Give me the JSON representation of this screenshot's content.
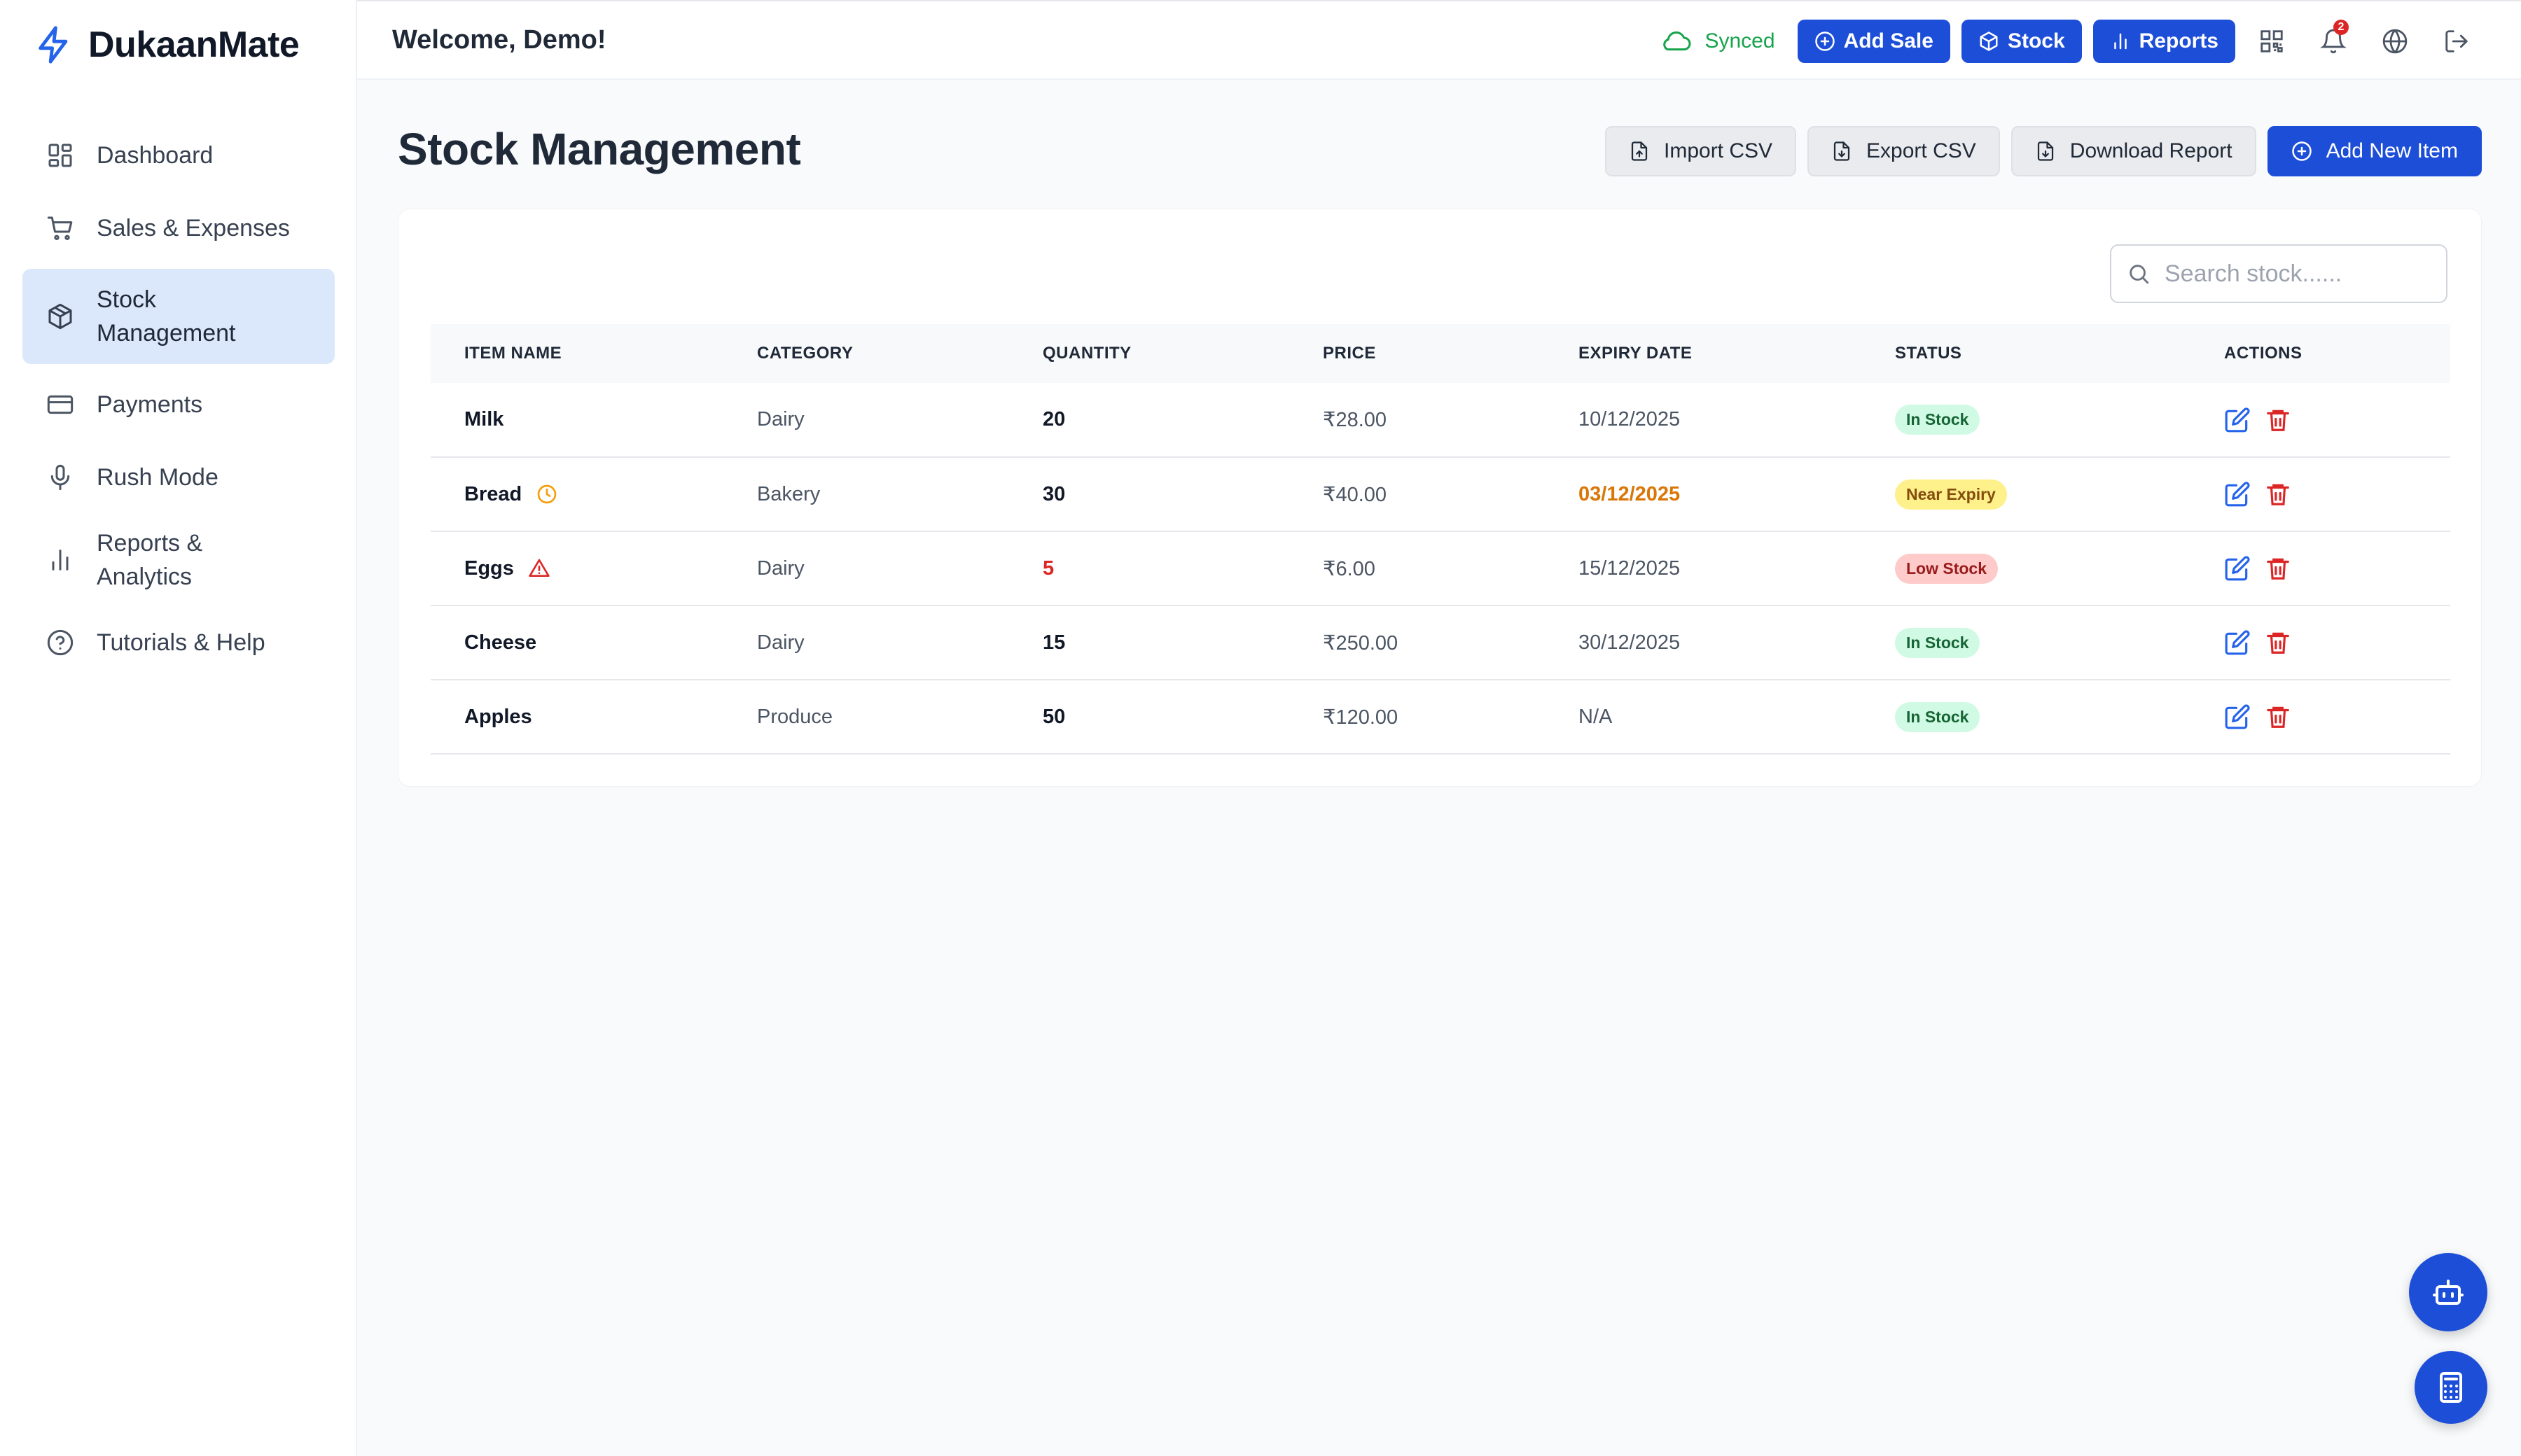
{
  "app": {
    "name": "DukaanMate"
  },
  "sidebar": {
    "items": [
      {
        "label": "Dashboard",
        "icon": "dashboard-icon"
      },
      {
        "label": "Sales & Expenses",
        "icon": "cart-icon"
      },
      {
        "label": "Stock Management",
        "icon": "box-icon",
        "active": true
      },
      {
        "label": "Payments",
        "icon": "card-icon"
      },
      {
        "label": "Rush Mode",
        "icon": "mic-icon"
      },
      {
        "label": "Reports & Analytics",
        "icon": "bar-chart-icon"
      },
      {
        "label": "Tutorials & Help",
        "icon": "help-icon"
      }
    ]
  },
  "header": {
    "welcome": "Welcome, Demo!",
    "sync_status": "Synced",
    "buttons": {
      "add_sale": "Add Sale",
      "stock": "Stock",
      "reports": "Reports"
    },
    "notification_count": "2"
  },
  "page": {
    "title": "Stock Management",
    "actions": {
      "import": "Import CSV",
      "export": "Export CSV",
      "download": "Download Report",
      "add": "Add New Item"
    },
    "search": {
      "placeholder": "Search stock......",
      "value": ""
    }
  },
  "table": {
    "headers": [
      "ITEM NAME",
      "CATEGORY",
      "QUANTITY",
      "PRICE",
      "EXPIRY DATE",
      "STATUS",
      "ACTIONS"
    ],
    "rows": [
      {
        "name": "Milk",
        "category": "Dairy",
        "quantity": "20",
        "price": "₹28.00",
        "expiry": "10/12/2025",
        "status": "In Stock"
      },
      {
        "name": "Bread",
        "category": "Bakery",
        "quantity": "30",
        "price": "₹40.00",
        "expiry": "03/12/2025",
        "status": "Near Expiry"
      },
      {
        "name": "Eggs",
        "category": "Dairy",
        "quantity": "5",
        "price": "₹6.00",
        "expiry": "15/12/2025",
        "status": "Low Stock"
      },
      {
        "name": "Cheese",
        "category": "Dairy",
        "quantity": "15",
        "price": "₹250.00",
        "expiry": "30/12/2025",
        "status": "In Stock"
      },
      {
        "name": "Apples",
        "category": "Produce",
        "quantity": "50",
        "price": "₹120.00",
        "expiry": "N/A",
        "status": "In Stock"
      }
    ]
  },
  "colors": {
    "primary": "#1d4ed8",
    "sync_green": "#16a34a",
    "danger": "#dc2626",
    "warning": "#d97706",
    "active_nav": "#dbe8fb"
  }
}
